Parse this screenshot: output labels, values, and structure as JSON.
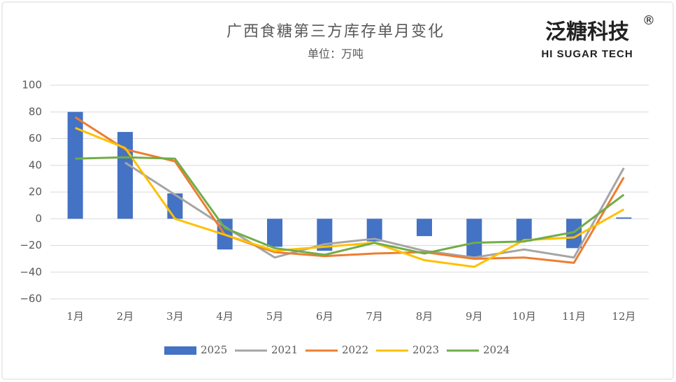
{
  "chart_data": {
    "type": "bar_line",
    "title": "广西食糖第三方库存单月变化",
    "subtitle": "单位：万吨",
    "brand": {
      "name": "泛糖科技",
      "mark": "®",
      "english": "HI SUGAR TECH"
    },
    "categories": [
      "1月",
      "2月",
      "3月",
      "4月",
      "5月",
      "6月",
      "7月",
      "8月",
      "9月",
      "10月",
      "11月",
      "12月"
    ],
    "series": [
      {
        "name": "2025",
        "kind": "bar",
        "color": "#4472c4",
        "values": [
          80,
          65,
          19,
          -23,
          -21,
          -24,
          -17,
          -13,
          -29,
          -17,
          -22,
          1
        ]
      },
      {
        "name": "2021",
        "kind": "line",
        "color": "#a5a5a5",
        "values": [
          null,
          42,
          18,
          -6,
          -29,
          -19,
          -15,
          -24,
          -29,
          -23,
          -29,
          38
        ]
      },
      {
        "name": "2022",
        "kind": "line",
        "color": "#ed7d31",
        "values": [
          76,
          52,
          43,
          -12,
          -25,
          -28,
          -26,
          -25,
          -30,
          -29,
          -33,
          31
        ]
      },
      {
        "name": "2023",
        "kind": "line",
        "color": "#ffc000",
        "values": [
          68,
          53,
          0,
          -12,
          -24,
          -21,
          -18,
          -31,
          -36,
          -16,
          -14,
          7
        ]
      },
      {
        "name": "2024",
        "kind": "line",
        "color": "#70ad47",
        "values": [
          45,
          46,
          45,
          -7,
          -22,
          -27,
          -18,
          -26,
          -18,
          -17,
          -10,
          18
        ]
      }
    ],
    "ylim": [
      -60,
      100
    ],
    "yticks": [
      {
        "value": -60,
        "label": "−60"
      },
      {
        "value": -40,
        "label": "−40"
      },
      {
        "value": -20,
        "label": "−20"
      },
      0,
      20,
      40,
      60,
      80,
      100
    ],
    "grid": true,
    "legend": "bottom"
  }
}
